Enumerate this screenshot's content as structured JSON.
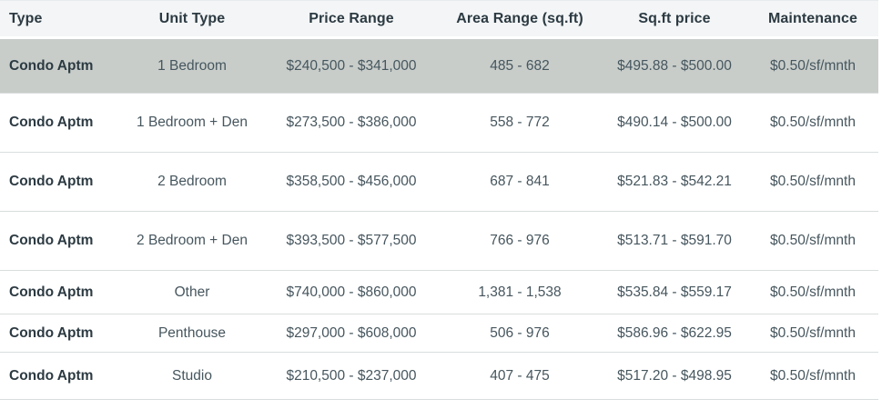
{
  "table": {
    "columns": [
      {
        "key": "type",
        "label": "Type"
      },
      {
        "key": "unit_type",
        "label": "Unit Type"
      },
      {
        "key": "price_range",
        "label": "Price Range"
      },
      {
        "key": "area_range",
        "label": "Area Range (sq.ft)"
      },
      {
        "key": "sqft_price",
        "label": "Sq.ft price"
      },
      {
        "key": "maintenance",
        "label": "Maintenance"
      }
    ],
    "rows": [
      {
        "type": "Condo Aptm",
        "unit_type": "1 Bedroom",
        "price_range": "$240,500 - $341,000",
        "area_range": "485 - 682",
        "sqft_price": "$495.88 - $500.00",
        "maintenance": "$0.50/sf/mnth",
        "highlighted": true
      },
      {
        "type": "Condo Aptm",
        "unit_type": "1 Bedroom + Den",
        "price_range": "$273,500 - $386,000",
        "area_range": "558 - 772",
        "sqft_price": "$490.14 - $500.00",
        "maintenance": "$0.50/sf/mnth",
        "highlighted": false
      },
      {
        "type": "Condo Aptm",
        "unit_type": "2 Bedroom",
        "price_range": "$358,500 - $456,000",
        "area_range": "687 - 841",
        "sqft_price": "$521.83 - $542.21",
        "maintenance": "$0.50/sf/mnth",
        "highlighted": false
      },
      {
        "type": "Condo Aptm",
        "unit_type": "2 Bedroom + Den",
        "price_range": "$393,500 - $577,500",
        "area_range": "766 - 976",
        "sqft_price": "$513.71 - $591.70",
        "maintenance": "$0.50/sf/mnth",
        "highlighted": false
      },
      {
        "type": "Condo Aptm",
        "unit_type": "Other",
        "price_range": "$740,000 - $860,000",
        "area_range": "1,381 - 1,538",
        "sqft_price": "$535.84 - $559.17",
        "maintenance": "$0.50/sf/mnth",
        "highlighted": false
      },
      {
        "type": "Condo Aptm",
        "unit_type": "Penthouse",
        "price_range": "$297,000 - $608,000",
        "area_range": "506 - 976",
        "sqft_price": "$586.96 - $622.95",
        "maintenance": "$0.50/sf/mnth",
        "highlighted": false
      },
      {
        "type": "Condo Aptm",
        "unit_type": "Studio",
        "price_range": "$210,500 - $237,000",
        "area_range": "407 - 475",
        "sqft_price": "$517.20 - $498.95",
        "maintenance": "$0.50/sf/mnth",
        "highlighted": false
      }
    ]
  },
  "colors": {
    "header_bg": "#f3f5f6",
    "header_text": "#2c3a42",
    "body_text": "#46565e",
    "highlight_row_bg": "#c8cdca",
    "row_divider": "#d9dddd"
  }
}
